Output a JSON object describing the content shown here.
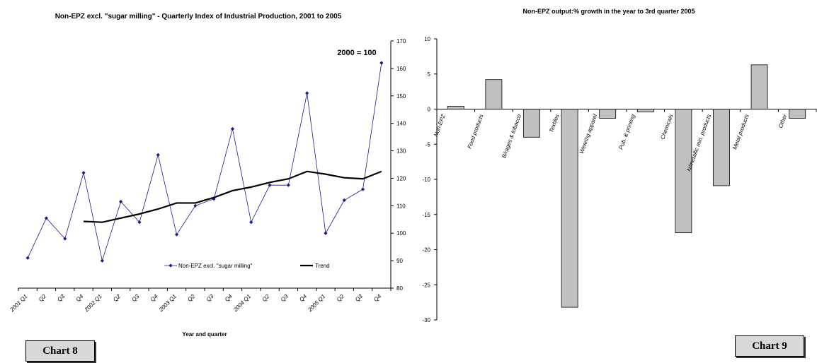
{
  "chart_data": [
    {
      "type": "line",
      "title": "Non-EPZ excl. \"sugar milling\" - Quarterly Index of Industrial Production, 2001 to 2005",
      "xlabel": "Year and quarter",
      "ylabel": "",
      "ylim": [
        80,
        170
      ],
      "yticks": [
        80,
        90,
        100,
        110,
        120,
        130,
        140,
        150,
        160,
        170
      ],
      "y_axis_side": "right",
      "annotation": "2000 = 100",
      "categories": [
        "2001 Q1",
        "Q2",
        "Q3",
        "Q4",
        "2002 Q1",
        "Q2",
        "Q3",
        "Q4",
        "2003 Q1",
        "Q2",
        "Q3",
        "Q4",
        "2004 Q1",
        "Q2",
        "Q3",
        "Q4",
        "2005 Q1",
        "Q2",
        "Q3",
        "Q4"
      ],
      "series": [
        {
          "name": "Non-EPZ excl. \"sugar milling\"",
          "color": "#1a1a8c",
          "marker": "diamond",
          "values": [
            91,
            105.5,
            98,
            122,
            90,
            111.5,
            104,
            128.5,
            99.5,
            110,
            112.5,
            138,
            104,
            117.5,
            117.5,
            151,
            100,
            112,
            116,
            162
          ]
        },
        {
          "name": "Trend",
          "color": "#000000",
          "marker": "none",
          "values": [
            null,
            null,
            null,
            104.3,
            104,
            105.5,
            107,
            108.8,
            111,
            111,
            113,
            115.5,
            116.8,
            118.5,
            119.8,
            122.5,
            121.5,
            120.2,
            119.8,
            122.5
          ]
        }
      ],
      "legend": "center-bottom"
    },
    {
      "type": "bar",
      "title": "Non-EPZ output:% growth in the year to 3rd quarter 2005",
      "xlabel": "",
      "ylabel": "",
      "ylim": [
        -30,
        10
      ],
      "yticks": [
        10,
        5,
        0,
        -5,
        -10,
        -15,
        -20,
        -25,
        -30
      ],
      "bar_color": "#c0c0c0",
      "categories": [
        "Non-EPZ",
        "Food products",
        "B/rages & tobacco",
        "Textiles",
        "Wearing apparel",
        "Pub. & printing",
        "Chemicals",
        "N/metallic min. products",
        "Metal products",
        "Other"
      ],
      "values": [
        0.4,
        4.2,
        -4.0,
        -28.2,
        -1.3,
        -0.4,
        -17.6,
        -10.9,
        6.3,
        -1.3
      ]
    }
  ],
  "labels": {
    "chart8_box": "Chart 8",
    "chart9_box": "Chart 9"
  }
}
